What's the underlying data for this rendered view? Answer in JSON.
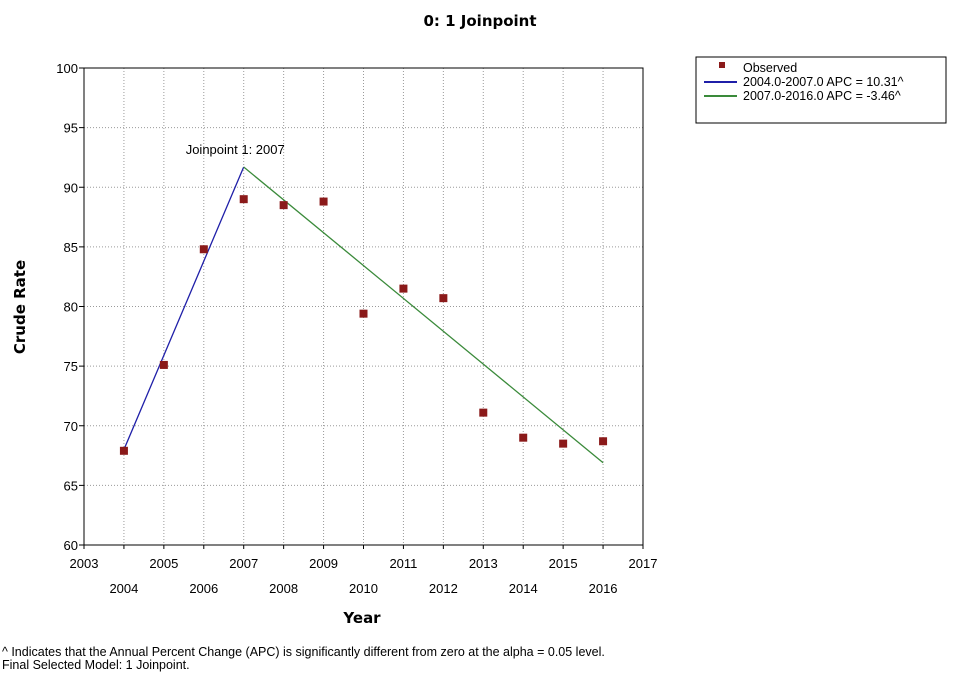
{
  "chart_data": {
    "type": "line",
    "title": "0: 1 Joinpoint",
    "xlabel": "Year",
    "ylabel": "Crude Rate",
    "xlim": [
      2003,
      2017
    ],
    "ylim": [
      60,
      100
    ],
    "x_ticks_upper": [
      "2003",
      "2005",
      "2007",
      "2009",
      "2011",
      "2013",
      "2015",
      "2017"
    ],
    "x_ticks_lower": [
      "2004",
      "2006",
      "2008",
      "2010",
      "2012",
      "2014",
      "2016"
    ],
    "y_ticks": [
      "60",
      "65",
      "70",
      "75",
      "80",
      "85",
      "90",
      "95",
      "100"
    ],
    "grid": true,
    "legend_position": "top-right",
    "series": [
      {
        "name": "Observed",
        "type": "scatter",
        "color": "#8b1a1a",
        "x": [
          2004,
          2005,
          2006,
          2007,
          2008,
          2009,
          2010,
          2011,
          2012,
          2013,
          2014,
          2015,
          2016
        ],
        "y": [
          67.9,
          75.1,
          84.8,
          89.0,
          88.5,
          88.8,
          79.4,
          81.5,
          80.7,
          71.1,
          69.0,
          68.5,
          68.7
        ]
      },
      {
        "name": "2004.0-2007.0 APC  = 10.31^",
        "type": "line",
        "color": "#1f1fa8",
        "x": [
          2004,
          2007
        ],
        "y": [
          68.0,
          91.7
        ]
      },
      {
        "name": "2007.0-2016.0 APC  = -3.46^",
        "type": "line",
        "color": "#3a8a3a",
        "x": [
          2007,
          2016
        ],
        "y": [
          91.7,
          66.9
        ]
      }
    ],
    "annotations": [
      {
        "text": "Joinpoint 1:  2007",
        "x": 2007,
        "y": 91.7
      }
    ]
  },
  "footnotes": [
    "^ Indicates that the Annual Percent Change (APC) is significantly different from zero at the alpha = 0.05 level.",
    "Final Selected Model: 1 Joinpoint."
  ]
}
